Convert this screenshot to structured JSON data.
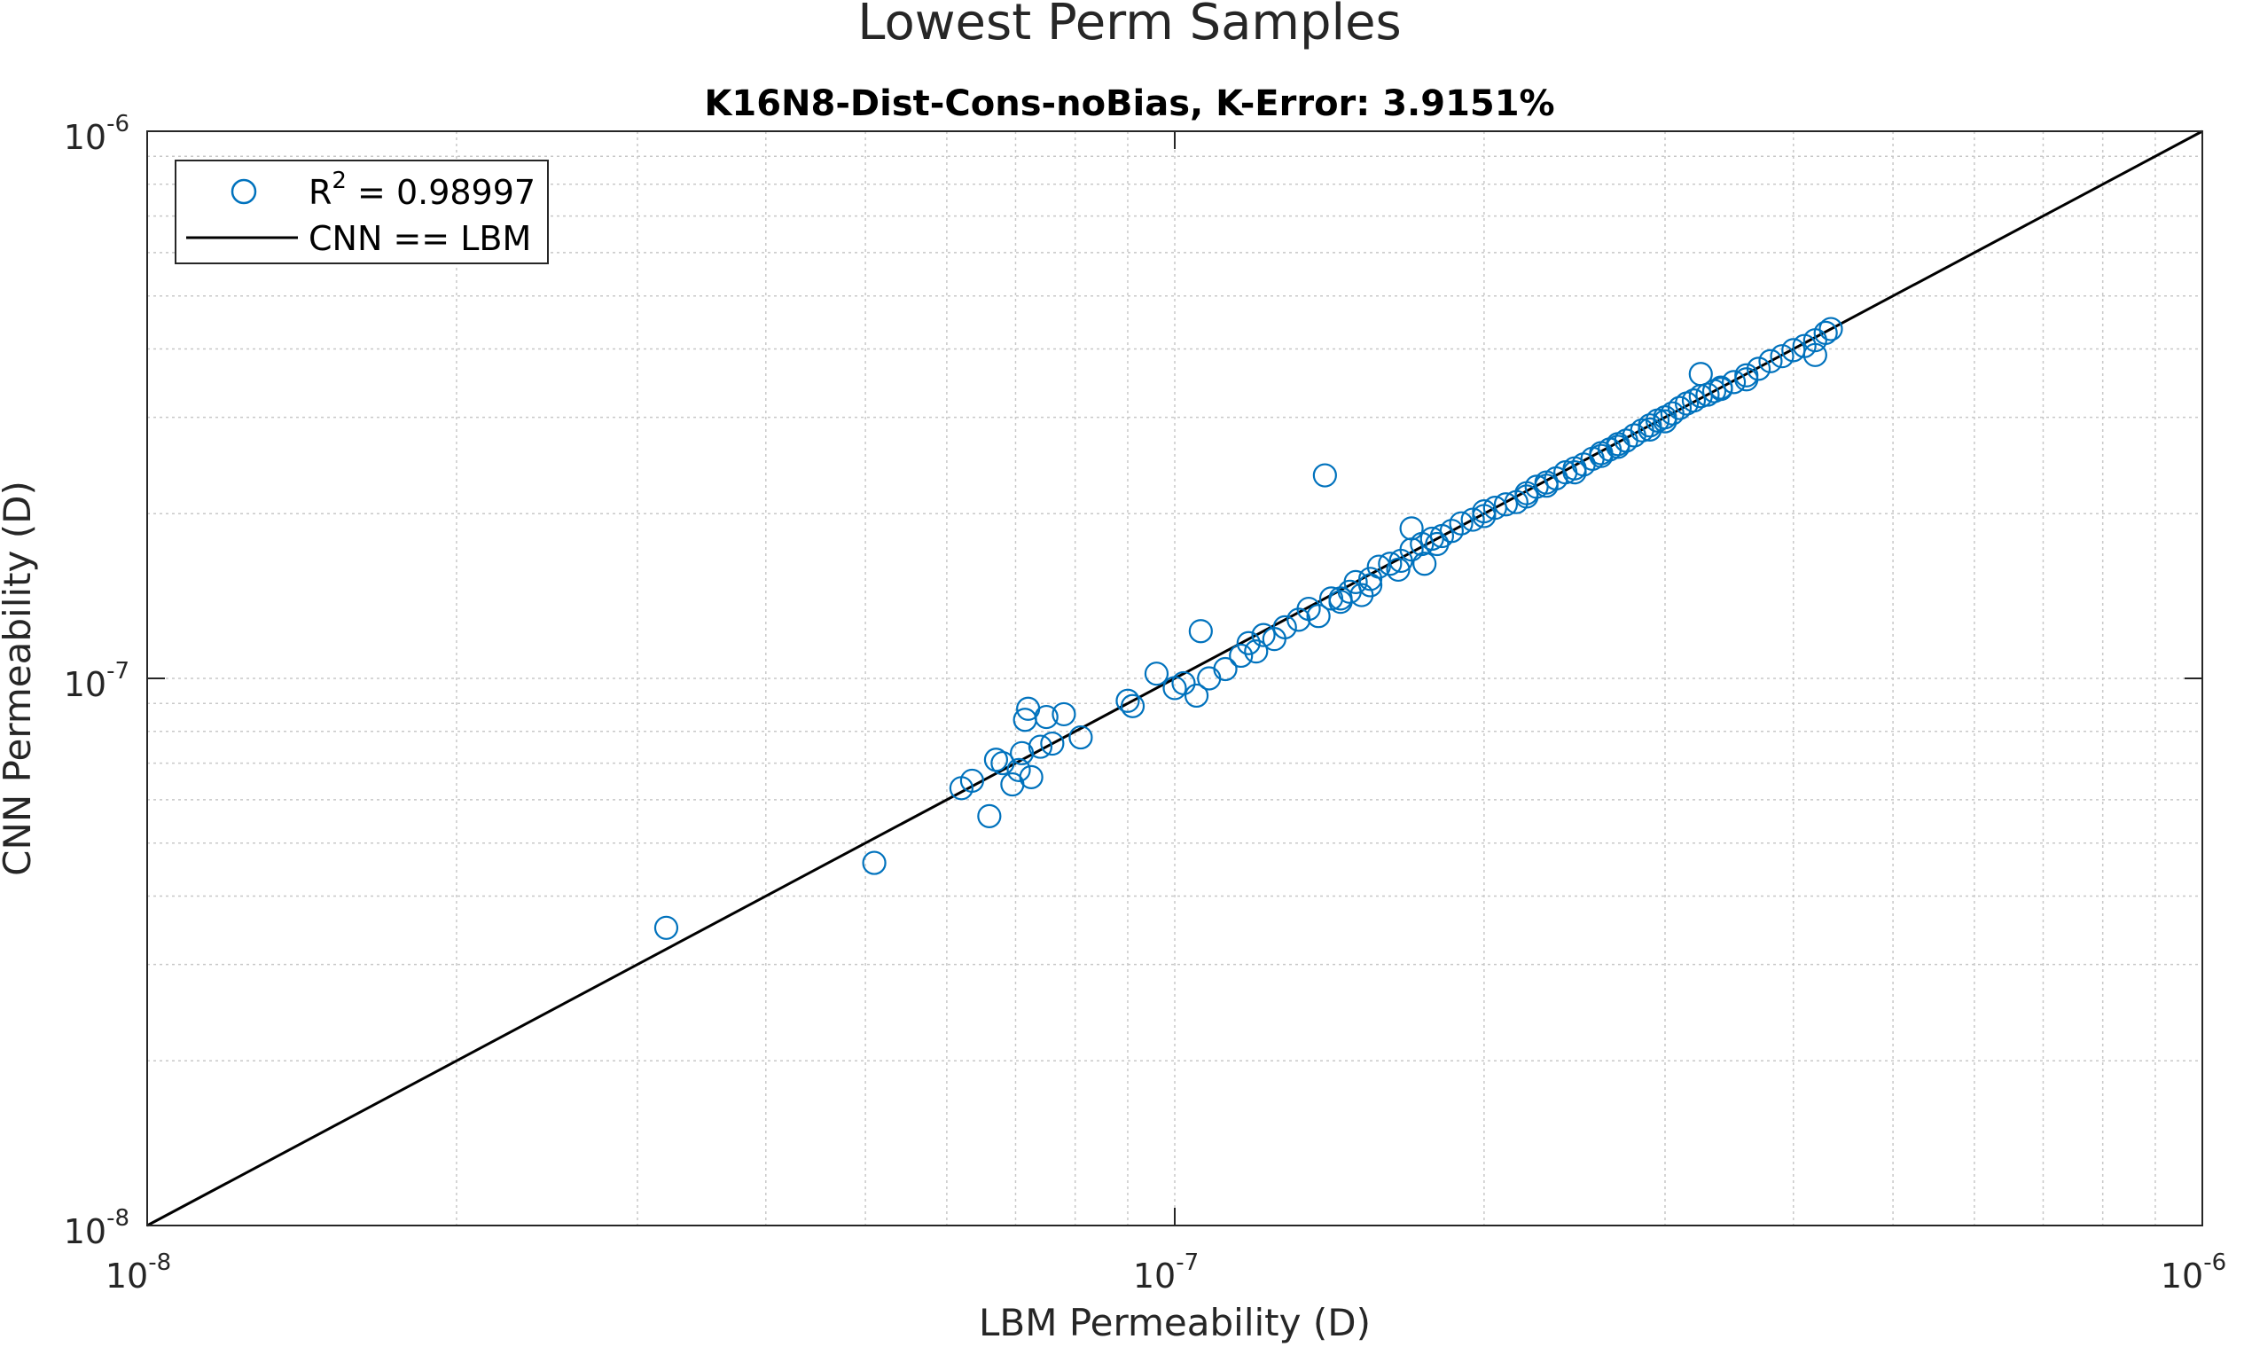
{
  "chart_data": {
    "type": "scatter",
    "title": "Lowest Perm Samples",
    "subtitle": "K16N8-Dist-Cons-noBias, K-Error: 3.9151%",
    "xlabel": "LBM Permeability (D)",
    "ylabel": "CNN Permeability (D)",
    "xscale": "log",
    "yscale": "log",
    "xlim": [
      1e-08,
      1e-06
    ],
    "ylim": [
      1e-08,
      1e-06
    ],
    "grid": true,
    "legend_position": "top-left",
    "x_ticks": [
      {
        "base": "10",
        "exp": "-8"
      },
      {
        "base": "10",
        "exp": "-7"
      },
      {
        "base": "10",
        "exp": "-6"
      }
    ],
    "y_ticks": [
      {
        "base": "10",
        "exp": "-8"
      },
      {
        "base": "10",
        "exp": "-7"
      },
      {
        "base": "10",
        "exp": "-6"
      }
    ],
    "legend": {
      "scatter_prefix": "R",
      "scatter_sup": "2",
      "scatter_suffix": " = 0.98997",
      "line_label": "CNN == LBM"
    },
    "colors": {
      "scatter": "#0072BD",
      "line": "#000000",
      "grid": "#c8c8c8"
    },
    "series": [
      {
        "kind": "reference-line",
        "x": [
          1e-08,
          1e-06
        ],
        "y": [
          1e-08,
          1e-06
        ]
      },
      {
        "kind": "scatter",
        "x": [
          3.2e-08,
          5.1e-08,
          6.2e-08,
          6.35e-08,
          6.6e-08,
          6.7e-08,
          6.8e-08,
          6.95e-08,
          7.05e-08,
          7.15e-08,
          7.25e-08,
          7.1e-08,
          7.2e-08,
          7.4e-08,
          7.5e-08,
          7.6e-08,
          7.8e-08,
          8.1e-08,
          9e-08,
          9.1e-08,
          9.6e-08,
          1e-07,
          1.02e-07,
          1.05e-07,
          1.06e-07,
          1.08e-07,
          1.12e-07,
          1.16e-07,
          1.18e-07,
          1.2e-07,
          1.22e-07,
          1.25e-07,
          1.28e-07,
          1.32e-07,
          1.38e-07,
          1.42e-07,
          1.45e-07,
          1.48e-07,
          1.5e-07,
          1.52e-07,
          1.55e-07,
          1.58e-07,
          1.62e-07,
          1.66e-07,
          1.7e-07,
          1.74e-07,
          1.78e-07,
          1.82e-07,
          1.86e-07,
          1.9e-07,
          1.95e-07,
          2e-07,
          2.05e-07,
          2.1e-07,
          2.15e-07,
          2.2e-07,
          2.25e-07,
          2.3e-07,
          2.35e-07,
          2.4e-07,
          2.45e-07,
          2.5e-07,
          2.55e-07,
          2.6e-07,
          2.65e-07,
          2.7e-07,
          2.75e-07,
          2.8e-07,
          2.85e-07,
          2.9e-07,
          2.95e-07,
          3e-07,
          3.05e-07,
          3.1e-07,
          3.15e-07,
          3.2e-07,
          3.25e-07,
          3.3e-07,
          3.35e-07,
          3.4e-07,
          3.5e-07,
          3.6e-07,
          3.7e-07,
          3.8e-07,
          3.9e-07,
          4e-07,
          4.1e-07,
          4.2e-07,
          4.3e-07,
          4.35e-07,
          1.4e-07,
          1.7e-07,
          1.8e-07,
          2.2e-07,
          2.45e-07,
          2.9e-07,
          3.25e-07,
          3.6e-07,
          4.2e-07,
          1.55e-07,
          1.35e-07,
          2.6e-07,
          3e-07,
          1.75e-07,
          2.3e-07,
          3.4e-07,
          2e-07,
          1.65e-07,
          1.45e-07,
          2.7e-07
        ],
        "y": [
          3.5e-08,
          4.6e-08,
          6.3e-08,
          6.5e-08,
          5.6e-08,
          7.1e-08,
          7e-08,
          6.4e-08,
          6.8e-08,
          8.4e-08,
          6.6e-08,
          7.3e-08,
          8.8e-08,
          7.5e-08,
          8.5e-08,
          7.6e-08,
          8.6e-08,
          7.8e-08,
          9.1e-08,
          8.9e-08,
          1.02e-07,
          9.6e-08,
          9.8e-08,
          9.3e-08,
          1.22e-07,
          1e-07,
          1.04e-07,
          1.1e-07,
          1.16e-07,
          1.12e-07,
          1.2e-07,
          1.18e-07,
          1.24e-07,
          1.28e-07,
          1.3e-07,
          1.4e-07,
          1.38e-07,
          1.44e-07,
          1.5e-07,
          1.42e-07,
          1.48e-07,
          1.6e-07,
          1.62e-07,
          1.64e-07,
          1.72e-07,
          1.76e-07,
          1.8e-07,
          1.82e-07,
          1.86e-07,
          1.92e-07,
          1.95e-07,
          2.02e-07,
          2.05e-07,
          2.08e-07,
          2.1e-07,
          2.18e-07,
          2.24e-07,
          2.28e-07,
          2.32e-07,
          2.38e-07,
          2.42e-07,
          2.46e-07,
          2.52e-07,
          2.58e-07,
          2.62e-07,
          2.68e-07,
          2.72e-07,
          2.78e-07,
          2.84e-07,
          2.9e-07,
          2.96e-07,
          3e-07,
          3.05e-07,
          3.12e-07,
          3.18e-07,
          3.22e-07,
          3.6e-07,
          3.3e-07,
          3.35e-07,
          3.4e-07,
          3.48e-07,
          3.58e-07,
          3.68e-07,
          3.8e-07,
          3.88e-07,
          3.98e-07,
          4.05e-07,
          4.15e-07,
          4.28e-07,
          4.35e-07,
          2.35e-07,
          1.88e-07,
          1.76e-07,
          2.15e-07,
          2.38e-07,
          2.85e-07,
          3.28e-07,
          3.52e-07,
          3.9e-07,
          1.52e-07,
          1.34e-07,
          2.55e-07,
          2.95e-07,
          1.62e-07,
          2.25e-07,
          3.38e-07,
          1.98e-07,
          1.58e-07,
          1.4e-07,
          2.65e-07
        ]
      }
    ]
  }
}
